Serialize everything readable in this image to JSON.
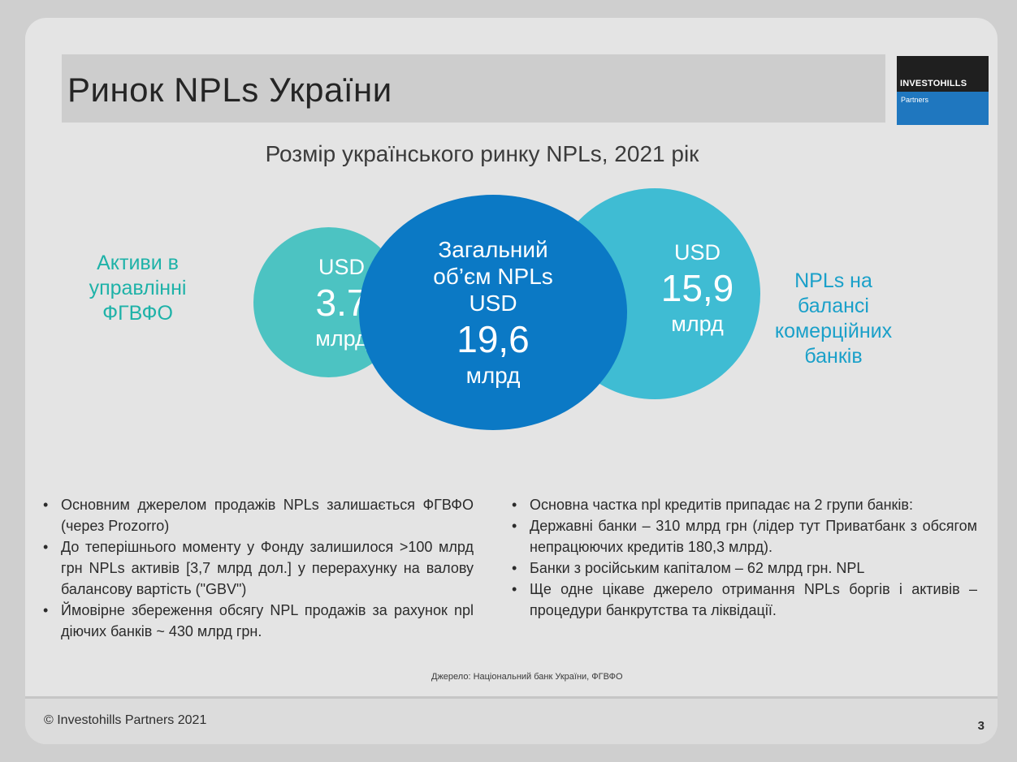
{
  "title": "Ринок NPLs України",
  "logo": {
    "name": "INVESTOHILLS",
    "sub": "Partners"
  },
  "subtitle": "Розмір українського ринку NPLs, 2021 рік",
  "circles": {
    "left": {
      "currency": "USD",
      "value": "3.7",
      "unit": "млрд"
    },
    "center": {
      "line1": "Загальний",
      "line2": "об’єм NPLs",
      "currency": "USD",
      "value": "19,6",
      "unit": "млрд"
    },
    "right": {
      "currency": "USD",
      "value": "15,9",
      "unit": "млрд"
    }
  },
  "side_labels": {
    "left": [
      "Активи в",
      "управлінні",
      "ФГВФО"
    ],
    "right": [
      "NPLs на",
      "балансі",
      "комерційних",
      "банків"
    ]
  },
  "colors": {
    "left_circle": "#4cc3c2",
    "center_circle": "#0b79c5",
    "right_circle": "#3fbcd3",
    "left_label": "#1eb2a8",
    "right_label": "#1aa0c9"
  },
  "bullets_left": [
    "Основним джерелом продажів NPLs залишається ФГВФО (через Prozorro)",
    "До теперішнього моменту у Фонду залишилося >100 млрд грн NPLs активів [3,7 млрд дол.] у перерахунку на валову балансову вартість (\"GBV\")",
    "Ймовірне збереження обсягу NPL продажів за рахунок npl діючих банків ~ 430 млрд грн."
  ],
  "bullets_right": [
    "Основна частка npl кредитів припадає на 2 групи банків:",
    "Державні банки – 310 млрд грн (лідер тут Приватбанк з обсягом непрацюючих кредитів 180,3 млрд).",
    "Банки з російським капіталом – 62 млрд грн. NPL",
    "Ще одне цікаве джерело отримання NPLs боргів і активів – процедури банкрутства та ліквідації."
  ],
  "source": "Джерело: Національний банк України, ФГВФО",
  "footer": {
    "copyright": "© Investohills Partners 2021",
    "page_number": "3"
  }
}
